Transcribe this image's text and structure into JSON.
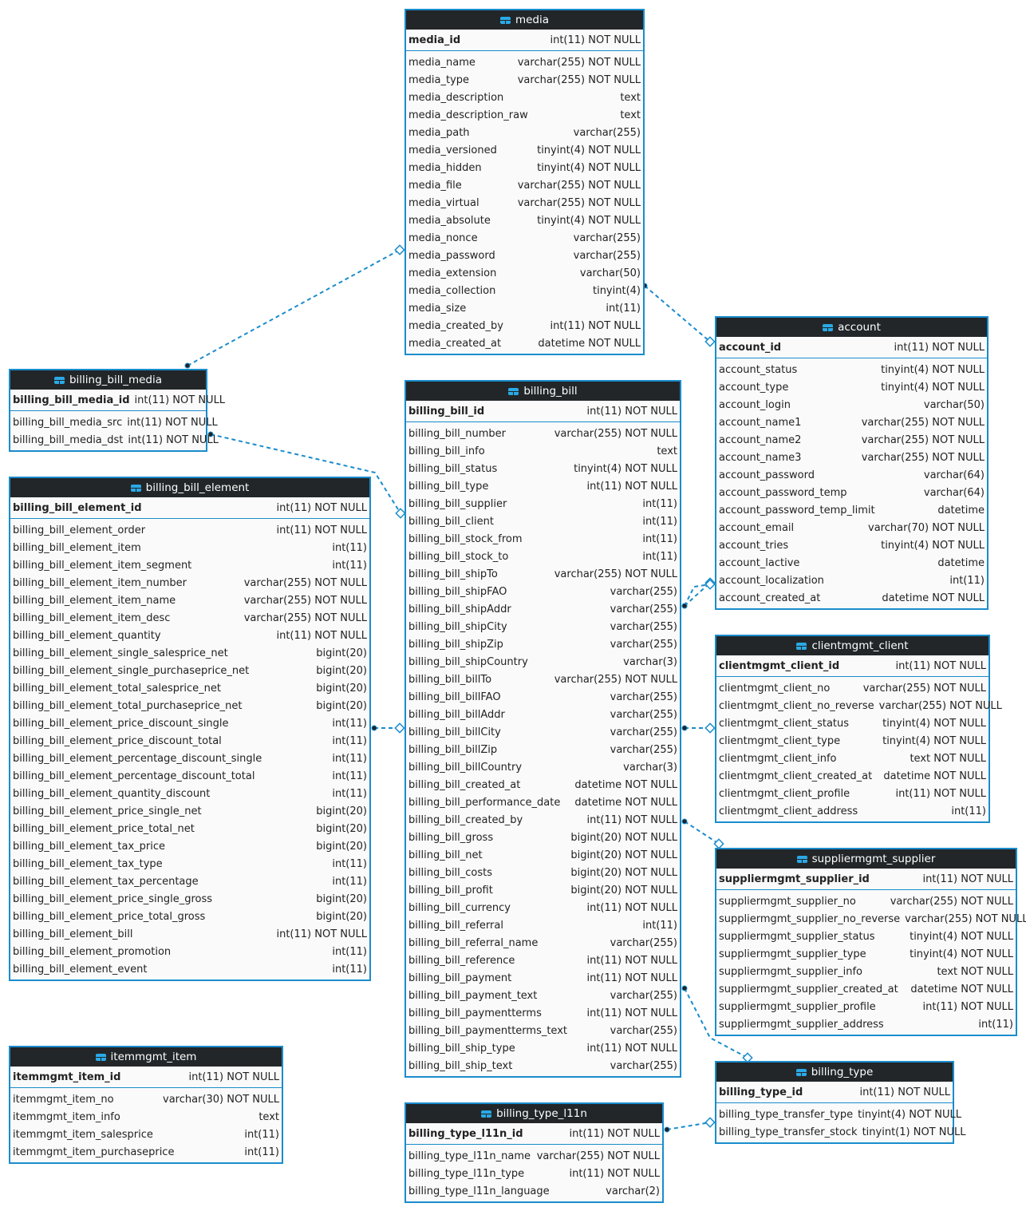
{
  "colors": {
    "border": "#1a8ccc",
    "header": "#222629",
    "link": "#1a8ccc"
  },
  "icon": "table-icon",
  "tables": [
    {
      "name": "media",
      "pk": [
        "media_id",
        "int(11) NOT NULL"
      ],
      "columns": [
        [
          "media_name",
          "varchar(255) NOT NULL"
        ],
        [
          "media_type",
          "varchar(255) NOT NULL"
        ],
        [
          "media_description",
          "text"
        ],
        [
          "media_description_raw",
          "text"
        ],
        [
          "media_path",
          "varchar(255)"
        ],
        [
          "media_versioned",
          "tinyint(4) NOT NULL"
        ],
        [
          "media_hidden",
          "tinyint(4) NOT NULL"
        ],
        [
          "media_file",
          "varchar(255) NOT NULL"
        ],
        [
          "media_virtual",
          "varchar(255) NOT NULL"
        ],
        [
          "media_absolute",
          "tinyint(4) NOT NULL"
        ],
        [
          "media_nonce",
          "varchar(255)"
        ],
        [
          "media_password",
          "varchar(255)"
        ],
        [
          "media_extension",
          "varchar(50)"
        ],
        [
          "media_collection",
          "tinyint(4)"
        ],
        [
          "media_size",
          "int(11)"
        ],
        [
          "media_created_by",
          "int(11) NOT NULL"
        ],
        [
          "media_created_at",
          "datetime NOT NULL"
        ]
      ]
    },
    {
      "name": "account",
      "pk": [
        "account_id",
        "int(11) NOT NULL"
      ],
      "columns": [
        [
          "account_status",
          "tinyint(4) NOT NULL"
        ],
        [
          "account_type",
          "tinyint(4) NOT NULL"
        ],
        [
          "account_login",
          "varchar(50)"
        ],
        [
          "account_name1",
          "varchar(255) NOT NULL"
        ],
        [
          "account_name2",
          "varchar(255) NOT NULL"
        ],
        [
          "account_name3",
          "varchar(255) NOT NULL"
        ],
        [
          "account_password",
          "varchar(64)"
        ],
        [
          "account_password_temp",
          "varchar(64)"
        ],
        [
          "account_password_temp_limit",
          "datetime"
        ],
        [
          "account_email",
          "varchar(70) NOT NULL"
        ],
        [
          "account_tries",
          "tinyint(4) NOT NULL"
        ],
        [
          "account_lactive",
          "datetime"
        ],
        [
          "account_localization",
          "int(11)"
        ],
        [
          "account_created_at",
          "datetime NOT NULL"
        ]
      ]
    },
    {
      "name": "billing_bill_media",
      "pk": [
        "billing_bill_media_id",
        "int(11) NOT NULL"
      ],
      "columns": [
        [
          "billing_bill_media_src",
          "int(11) NOT NULL"
        ],
        [
          "billing_bill_media_dst",
          "int(11) NOT NULL"
        ]
      ]
    },
    {
      "name": "billing_bill",
      "pk": [
        "billing_bill_id",
        "int(11) NOT NULL"
      ],
      "columns": [
        [
          "billing_bill_number",
          "varchar(255) NOT NULL"
        ],
        [
          "billing_bill_info",
          "text"
        ],
        [
          "billing_bill_status",
          "tinyint(4) NOT NULL"
        ],
        [
          "billing_bill_type",
          "int(11) NOT NULL"
        ],
        [
          "billing_bill_supplier",
          "int(11)"
        ],
        [
          "billing_bill_client",
          "int(11)"
        ],
        [
          "billing_bill_stock_from",
          "int(11)"
        ],
        [
          "billing_bill_stock_to",
          "int(11)"
        ],
        [
          "billing_bill_shipTo",
          "varchar(255) NOT NULL"
        ],
        [
          "billing_bill_shipFAO",
          "varchar(255)"
        ],
        [
          "billing_bill_shipAddr",
          "varchar(255)"
        ],
        [
          "billing_bill_shipCity",
          "varchar(255)"
        ],
        [
          "billing_bill_shipZip",
          "varchar(255)"
        ],
        [
          "billing_bill_shipCountry",
          "varchar(3)"
        ],
        [
          "billing_bill_billTo",
          "varchar(255) NOT NULL"
        ],
        [
          "billing_bill_billFAO",
          "varchar(255)"
        ],
        [
          "billing_bill_billAddr",
          "varchar(255)"
        ],
        [
          "billing_bill_billCity",
          "varchar(255)"
        ],
        [
          "billing_bill_billZip",
          "varchar(255)"
        ],
        [
          "billing_bill_billCountry",
          "varchar(3)"
        ],
        [
          "billing_bill_created_at",
          "datetime NOT NULL"
        ],
        [
          "billing_bill_performance_date",
          "datetime NOT NULL"
        ],
        [
          "billing_bill_created_by",
          "int(11) NOT NULL"
        ],
        [
          "billing_bill_gross",
          "bigint(20) NOT NULL"
        ],
        [
          "billing_bill_net",
          "bigint(20) NOT NULL"
        ],
        [
          "billing_bill_costs",
          "bigint(20) NOT NULL"
        ],
        [
          "billing_bill_profit",
          "bigint(20) NOT NULL"
        ],
        [
          "billing_bill_currency",
          "int(11) NOT NULL"
        ],
        [
          "billing_bill_referral",
          "int(11)"
        ],
        [
          "billing_bill_referral_name",
          "varchar(255)"
        ],
        [
          "billing_bill_reference",
          "int(11) NOT NULL"
        ],
        [
          "billing_bill_payment",
          "int(11) NOT NULL"
        ],
        [
          "billing_bill_payment_text",
          "varchar(255)"
        ],
        [
          "billing_bill_paymentterms",
          "int(11) NOT NULL"
        ],
        [
          "billing_bill_paymentterms_text",
          "varchar(255)"
        ],
        [
          "billing_bill_ship_type",
          "int(11) NOT NULL"
        ],
        [
          "billing_bill_ship_text",
          "varchar(255)"
        ]
      ]
    },
    {
      "name": "billing_bill_element",
      "pk": [
        "billing_bill_element_id",
        "int(11) NOT NULL"
      ],
      "columns": [
        [
          "billing_bill_element_order",
          "int(11) NOT NULL"
        ],
        [
          "billing_bill_element_item",
          "int(11)"
        ],
        [
          "billing_bill_element_item_segment",
          "int(11)"
        ],
        [
          "billing_bill_element_item_number",
          "varchar(255) NOT NULL"
        ],
        [
          "billing_bill_element_item_name",
          "varchar(255) NOT NULL"
        ],
        [
          "billing_bill_element_item_desc",
          "varchar(255) NOT NULL"
        ],
        [
          "billing_bill_element_quantity",
          "int(11) NOT NULL"
        ],
        [
          "billing_bill_element_single_salesprice_net",
          "bigint(20)"
        ],
        [
          "billing_bill_element_single_purchaseprice_net",
          "bigint(20)"
        ],
        [
          "billing_bill_element_total_salesprice_net",
          "bigint(20)"
        ],
        [
          "billing_bill_element_total_purchaseprice_net",
          "bigint(20)"
        ],
        [
          "billing_bill_element_price_discount_single",
          "int(11)"
        ],
        [
          "billing_bill_element_price_discount_total",
          "int(11)"
        ],
        [
          "billing_bill_element_percentage_discount_single",
          "int(11)"
        ],
        [
          "billing_bill_element_percentage_discount_total",
          "int(11)"
        ],
        [
          "billing_bill_element_quantity_discount",
          "int(11)"
        ],
        [
          "billing_bill_element_price_single_net",
          "bigint(20)"
        ],
        [
          "billing_bill_element_price_total_net",
          "bigint(20)"
        ],
        [
          "billing_bill_element_tax_price",
          "bigint(20)"
        ],
        [
          "billing_bill_element_tax_type",
          "int(11)"
        ],
        [
          "billing_bill_element_tax_percentage",
          "int(11)"
        ],
        [
          "billing_bill_element_price_single_gross",
          "bigint(20)"
        ],
        [
          "billing_bill_element_price_total_gross",
          "bigint(20)"
        ],
        [
          "billing_bill_element_bill",
          "int(11) NOT NULL"
        ],
        [
          "billing_bill_element_promotion",
          "int(11)"
        ],
        [
          "billing_bill_element_event",
          "int(11)"
        ]
      ]
    },
    {
      "name": "clientmgmt_client",
      "pk": [
        "clientmgmt_client_id",
        "int(11) NOT NULL"
      ],
      "columns": [
        [
          "clientmgmt_client_no",
          "varchar(255) NOT NULL"
        ],
        [
          "clientmgmt_client_no_reverse",
          "varchar(255) NOT NULL"
        ],
        [
          "clientmgmt_client_status",
          "tinyint(4) NOT NULL"
        ],
        [
          "clientmgmt_client_type",
          "tinyint(4) NOT NULL"
        ],
        [
          "clientmgmt_client_info",
          "text NOT NULL"
        ],
        [
          "clientmgmt_client_created_at",
          "datetime NOT NULL"
        ],
        [
          "clientmgmt_client_profile",
          "int(11) NOT NULL"
        ],
        [
          "clientmgmt_client_address",
          "int(11)"
        ]
      ]
    },
    {
      "name": "suppliermgmt_supplier",
      "pk": [
        "suppliermgmt_supplier_id",
        "int(11) NOT NULL"
      ],
      "columns": [
        [
          "suppliermgmt_supplier_no",
          "varchar(255) NOT NULL"
        ],
        [
          "suppliermgmt_supplier_no_reverse",
          "varchar(255) NOT NULL"
        ],
        [
          "suppliermgmt_supplier_status",
          "tinyint(4) NOT NULL"
        ],
        [
          "suppliermgmt_supplier_type",
          "tinyint(4) NOT NULL"
        ],
        [
          "suppliermgmt_supplier_info",
          "text NOT NULL"
        ],
        [
          "suppliermgmt_supplier_created_at",
          "datetime NOT NULL"
        ],
        [
          "suppliermgmt_supplier_profile",
          "int(11) NOT NULL"
        ],
        [
          "suppliermgmt_supplier_address",
          "int(11)"
        ]
      ]
    },
    {
      "name": "billing_type",
      "pk": [
        "billing_type_id",
        "int(11) NOT NULL"
      ],
      "columns": [
        [
          "billing_type_transfer_type",
          "tinyint(4) NOT NULL"
        ],
        [
          "billing_type_transfer_stock",
          "tinyint(1) NOT NULL"
        ]
      ]
    },
    {
      "name": "billing_type_l11n",
      "pk": [
        "billing_type_l11n_id",
        "int(11) NOT NULL"
      ],
      "columns": [
        [
          "billing_type_l11n_name",
          "varchar(255) NOT NULL"
        ],
        [
          "billing_type_l11n_type",
          "int(11) NOT NULL"
        ],
        [
          "billing_type_l11n_language",
          "varchar(2)"
        ]
      ]
    },
    {
      "name": "itemmgmt_item",
      "pk": [
        "itemmgmt_item_id",
        "int(11) NOT NULL"
      ],
      "columns": [
        [
          "itemmgmt_item_no",
          "varchar(30) NOT NULL"
        ],
        [
          "itemmgmt_item_info",
          "text"
        ],
        [
          "itemmgmt_item_salesprice",
          "int(11)"
        ],
        [
          "itemmgmt_item_purchaseprice",
          "int(11)"
        ]
      ]
    }
  ]
}
